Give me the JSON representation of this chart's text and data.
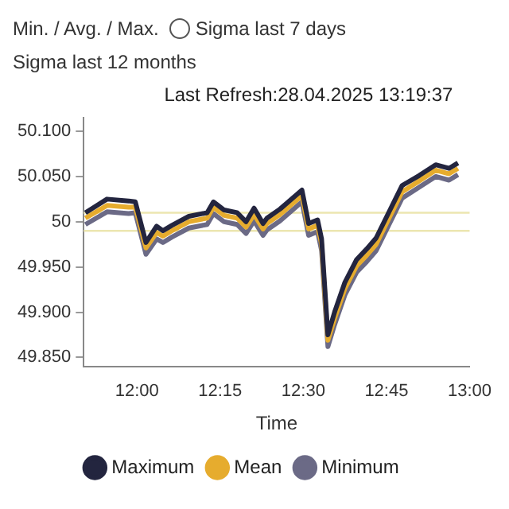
{
  "chart_data": {
    "type": "line",
    "xlabel": "Time",
    "annotations": [
      "Min. / Avg. / Max.",
      "Sigma last 7 days",
      "Sigma last 12 months",
      "Last Refresh:28.04.2025 13:19:37"
    ],
    "x": [
      11.845,
      11.91,
      11.975,
      11.995,
      12.027,
      12.059,
      12.078,
      12.105,
      12.156,
      12.211,
      12.23,
      12.262,
      12.301,
      12.328,
      12.352,
      12.379,
      12.391,
      12.43,
      12.496,
      12.516,
      12.543,
      12.555,
      12.574,
      12.594,
      12.625,
      12.66,
      12.691,
      12.719,
      12.758,
      12.797,
      12.848,
      12.898,
      12.938,
      12.965
    ],
    "series": [
      {
        "name": "Maximum",
        "color": "#23253f",
        "values": [
          50.01,
          50.025,
          50.023,
          50.022,
          49.977,
          49.995,
          49.99,
          49.996,
          50.006,
          50.01,
          50.022,
          50.013,
          50.01,
          50.0,
          50.015,
          49.998,
          50.004,
          50.014,
          50.035,
          49.998,
          50.002,
          49.981,
          49.875,
          49.9,
          49.933,
          49.958,
          49.97,
          49.982,
          50.011,
          50.04,
          50.051,
          50.063,
          50.059,
          50.065
        ]
      },
      {
        "name": "Mean",
        "color": "#e6ac2e",
        "values": [
          50.004,
          50.018,
          50.016,
          50.016,
          49.971,
          49.988,
          49.984,
          49.99,
          50.0,
          50.004,
          50.016,
          50.007,
          50.004,
          49.994,
          50.008,
          49.992,
          49.998,
          50.008,
          50.029,
          49.992,
          49.996,
          49.975,
          49.869,
          49.893,
          49.926,
          49.951,
          49.963,
          49.975,
          50.004,
          50.033,
          50.045,
          50.057,
          50.053,
          50.059
        ]
      },
      {
        "name": "Minimum",
        "color": "#6b6a86",
        "values": [
          49.997,
          50.011,
          50.009,
          50.01,
          49.964,
          49.981,
          49.977,
          49.983,
          49.993,
          49.997,
          50.009,
          50.0,
          49.997,
          49.987,
          50.001,
          49.985,
          49.991,
          50.001,
          50.022,
          49.985,
          49.989,
          49.968,
          49.862,
          49.886,
          49.919,
          49.944,
          49.956,
          49.968,
          49.997,
          50.026,
          50.038,
          50.05,
          50.046,
          50.052
        ]
      }
    ],
    "xlim": [
      11.84,
      13.0
    ],
    "xticks": [
      {
        "value": 12,
        "label": "12:00"
      },
      {
        "value": 12.25,
        "label": "12:15"
      },
      {
        "value": 12.5,
        "label": "12:30"
      },
      {
        "value": 12.75,
        "label": "12:45"
      },
      {
        "value": 13,
        "label": "13:00"
      }
    ],
    "ylim": [
      49.84,
      50.115
    ],
    "yticks": [
      {
        "value": 49.85,
        "label": "49.850"
      },
      {
        "value": 49.9,
        "label": "49.900"
      },
      {
        "value": 49.95,
        "label": "49.950"
      },
      {
        "value": 50,
        "label": "50"
      },
      {
        "value": 50.05,
        "label": "50.050"
      },
      {
        "value": 50.1,
        "label": "50.100"
      }
    ],
    "ref_lines": [
      {
        "axis": "y",
        "value": 50.01,
        "color": "#ece6b0"
      },
      {
        "axis": "y",
        "value": 49.99,
        "color": "#ece6b0"
      }
    ],
    "legend": "bottom",
    "marker": "none",
    "line_style": "solid"
  }
}
